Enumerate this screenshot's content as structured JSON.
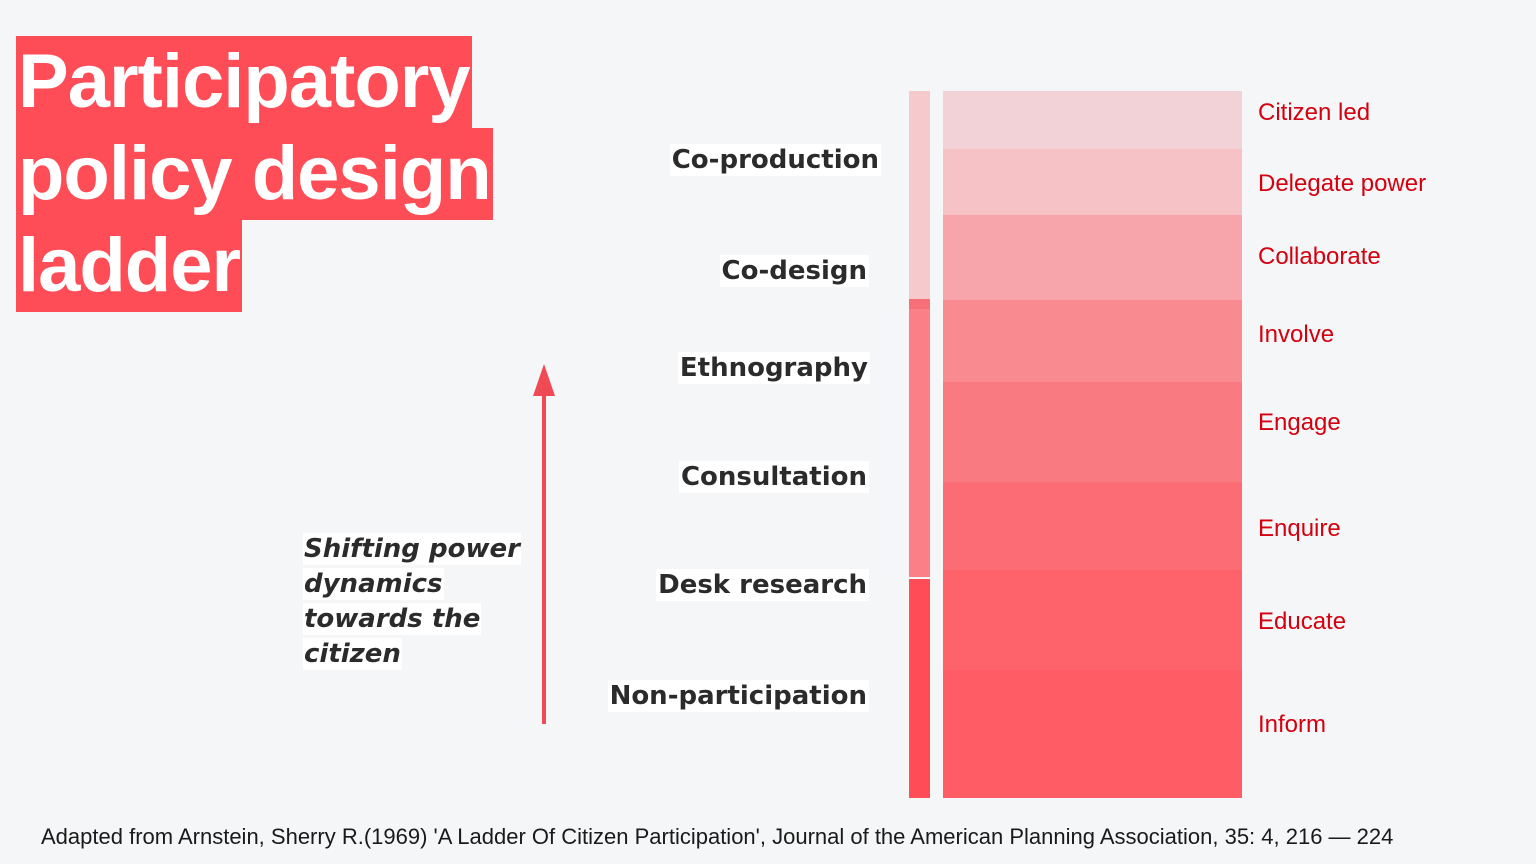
{
  "title": {
    "lines": [
      "Participatory",
      "policy design",
      "ladder"
    ]
  },
  "methods": [
    "Co-production",
    "Co-design",
    "Ethnography",
    "Consultation",
    "Desk research",
    "Non-participation"
  ],
  "levels": [
    "Citizen led",
    "Delegate power",
    "Collaborate",
    "Involve",
    "Engage",
    "Enquire",
    "Educate",
    "Inform"
  ],
  "caption": {
    "lines": [
      "Shifting power",
      "dynamics",
      "towards the",
      "citizen"
    ]
  },
  "citation": "Adapted from Arnstein, Sherry R.(1969) 'A Ladder Of Citizen Participation', Journal of the American Planning Association, 35: 4, 216 — 224",
  "colors": {
    "accent": "#ff4d57",
    "level_text": "#d4000f",
    "arrow": "#f04a55",
    "band_shades": [
      "#f2d2d7",
      "#f6c2c6",
      "#f7a5aa",
      "#f88a90",
      "#fa7a81",
      "#fc6c74",
      "#fe636b",
      "#ff5c66"
    ],
    "mini_shades": [
      "#f6c9cd",
      "#fb7f86",
      "#ff4d57"
    ]
  },
  "icons": {
    "arrow": "up-arrow-icon"
  }
}
